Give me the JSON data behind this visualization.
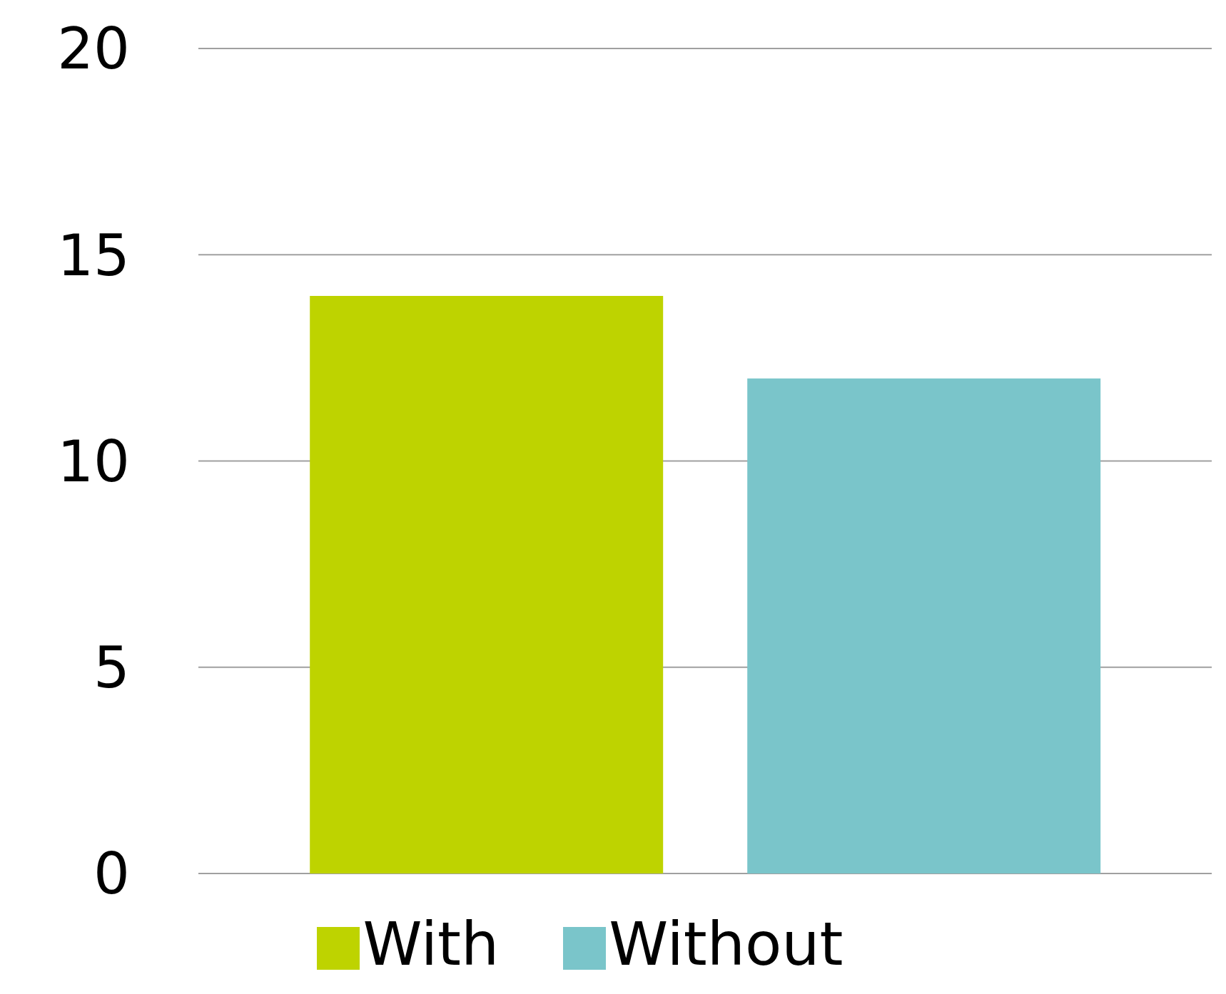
{
  "chart_data": {
    "type": "bar",
    "categories": [
      null
    ],
    "series": [
      {
        "name": "With",
        "color": "#bed300",
        "values": [
          14
        ]
      },
      {
        "name": "Without",
        "color": "#7ac5ca",
        "values": [
          12
        ]
      }
    ],
    "ylim": [
      0,
      20
    ],
    "yticks": [
      0,
      5,
      10,
      15,
      20
    ],
    "grid": "y",
    "legend": "bottom"
  }
}
